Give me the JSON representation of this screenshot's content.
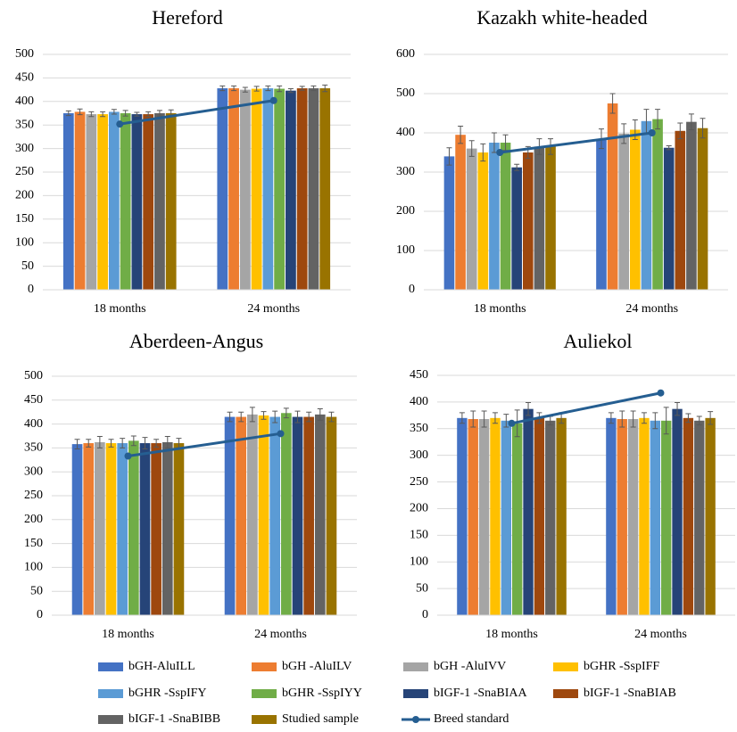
{
  "chart_data": [
    {
      "type": "bar",
      "title": "Hereford",
      "categories": [
        "18 months",
        "24 months"
      ],
      "ylim": [
        0,
        500
      ],
      "yticks": [
        0,
        50,
        100,
        150,
        200,
        250,
        300,
        350,
        400,
        450,
        500
      ],
      "grid": true,
      "series": [
        {
          "name": "bGH-AluILL",
          "color": "#4472c4",
          "values": [
            375,
            428
          ],
          "error": [
            5,
            5
          ]
        },
        {
          "name": "bGH -AluILV",
          "color": "#ed7d31",
          "values": [
            378,
            428
          ],
          "error": [
            6,
            5
          ]
        },
        {
          "name": "bGH -AluIVV",
          "color": "#a5a5a5",
          "values": [
            373,
            425
          ],
          "error": [
            5,
            5
          ]
        },
        {
          "name": "bGHR -SspIFF",
          "color": "#ffc000",
          "values": [
            373,
            427
          ],
          "error": [
            5,
            5
          ]
        },
        {
          "name": "bGHR -SspIFY",
          "color": "#5b9bd5",
          "values": [
            378,
            428
          ],
          "error": [
            5,
            5
          ]
        },
        {
          "name": "bGHR -SspIYY",
          "color": "#70ad47",
          "values": [
            375,
            427
          ],
          "error": [
            6,
            6
          ]
        },
        {
          "name": "bIGF-1 -SnaBIAA",
          "color": "#264478",
          "values": [
            373,
            423
          ],
          "error": [
            4,
            4
          ]
        },
        {
          "name": "bIGF-1 -SnaBIAB",
          "color": "#9e480e",
          "values": [
            373,
            428
          ],
          "error": [
            5,
            4
          ]
        },
        {
          "name": "bIGF-1 -SnaBIBB",
          "color": "#636363",
          "values": [
            375,
            428
          ],
          "error": [
            6,
            5
          ]
        },
        {
          "name": "Studied sample",
          "color": "#997300",
          "values": [
            375,
            428
          ],
          "error": [
            7,
            7
          ]
        },
        {
          "name": "Breed standard",
          "type": "line",
          "color": "#255e91",
          "values": [
            352,
            402
          ]
        }
      ]
    },
    {
      "type": "bar",
      "title": "Kazakh white-headed",
      "categories": [
        "18 months",
        "24 months"
      ],
      "ylim": [
        0,
        600
      ],
      "yticks": [
        0,
        100,
        200,
        300,
        400,
        500,
        600
      ],
      "grid": true,
      "series": [
        {
          "name": "bGH-AluILL",
          "color": "#4472c4",
          "values": [
            340,
            385
          ],
          "error": [
            22,
            25
          ]
        },
        {
          "name": "bGH -AluILV",
          "color": "#ed7d31",
          "values": [
            395,
            475
          ],
          "error": [
            22,
            25
          ]
        },
        {
          "name": "bGH -AluIVV",
          "color": "#a5a5a5",
          "values": [
            360,
            398
          ],
          "error": [
            20,
            25
          ]
        },
        {
          "name": "bGHR -SspIFF",
          "color": "#ffc000",
          "values": [
            350,
            408
          ],
          "error": [
            22,
            25
          ]
        },
        {
          "name": "bGHR -SspIFY",
          "color": "#5b9bd5",
          "values": [
            375,
            430
          ],
          "error": [
            25,
            30
          ]
        },
        {
          "name": "bGHR -SspIYY",
          "color": "#70ad47",
          "values": [
            375,
            435
          ],
          "error": [
            20,
            25
          ]
        },
        {
          "name": "bIGF-1 -SnaBIAA",
          "color": "#264478",
          "values": [
            312,
            362
          ],
          "error": [
            8,
            5
          ]
        },
        {
          "name": "bIGF-1 -SnaBIAB",
          "color": "#9e480e",
          "values": [
            350,
            405
          ],
          "error": [
            15,
            20
          ]
        },
        {
          "name": "bIGF-1 -SnaBIBB",
          "color": "#636363",
          "values": [
            365,
            428
          ],
          "error": [
            20,
            20
          ]
        },
        {
          "name": "Studied sample",
          "color": "#997300",
          "values": [
            365,
            412
          ],
          "error": [
            20,
            25
          ]
        },
        {
          "name": "Breed standard",
          "type": "line",
          "color": "#255e91",
          "values": [
            350,
            400
          ]
        }
      ]
    },
    {
      "type": "bar",
      "title": "Aberdeen-Angus",
      "categories": [
        "18 months",
        "24 months"
      ],
      "ylim": [
        0,
        500
      ],
      "yticks": [
        0,
        50,
        100,
        150,
        200,
        250,
        300,
        350,
        400,
        450,
        500
      ],
      "grid": true,
      "series": [
        {
          "name": "bGH-AluILL",
          "color": "#4472c4",
          "values": [
            358,
            415
          ],
          "error": [
            10,
            10
          ]
        },
        {
          "name": "bGH -AluILV",
          "color": "#ed7d31",
          "values": [
            360,
            415
          ],
          "error": [
            8,
            10
          ]
        },
        {
          "name": "bGH -AluIVV",
          "color": "#a5a5a5",
          "values": [
            362,
            420
          ],
          "error": [
            12,
            15
          ]
        },
        {
          "name": "bGHR -SspIFF",
          "color": "#ffc000",
          "values": [
            360,
            418
          ],
          "error": [
            8,
            8
          ]
        },
        {
          "name": "bGHR -SspIFY",
          "color": "#5b9bd5",
          "values": [
            360,
            415
          ],
          "error": [
            10,
            12
          ]
        },
        {
          "name": "bGHR -SspIYY",
          "color": "#70ad47",
          "values": [
            365,
            423
          ],
          "error": [
            10,
            10
          ]
        },
        {
          "name": "bIGF-1 -SnaBIAA",
          "color": "#264478",
          "values": [
            360,
            415
          ],
          "error": [
            12,
            12
          ]
        },
        {
          "name": "bIGF-1 -SnaBIAB",
          "color": "#9e480e",
          "values": [
            360,
            415
          ],
          "error": [
            8,
            10
          ]
        },
        {
          "name": "bIGF-1 -SnaBIBB",
          "color": "#636363",
          "values": [
            362,
            420
          ],
          "error": [
            12,
            12
          ]
        },
        {
          "name": "Studied sample",
          "color": "#997300",
          "values": [
            360,
            415
          ],
          "error": [
            10,
            10
          ]
        },
        {
          "name": "Breed standard",
          "type": "line",
          "color": "#255e91",
          "values": [
            333,
            380
          ]
        }
      ]
    },
    {
      "type": "bar",
      "title": "Auliekol",
      "categories": [
        "18 months",
        "24 months"
      ],
      "ylim": [
        0,
        450
      ],
      "yticks": [
        0,
        50,
        100,
        150,
        200,
        250,
        300,
        350,
        400,
        450
      ],
      "grid": true,
      "series": [
        {
          "name": "bGH-AluILL",
          "color": "#4472c4",
          "values": [
            370,
            370
          ],
          "error": [
            10,
            10
          ]
        },
        {
          "name": "bGH -AluILV",
          "color": "#ed7d31",
          "values": [
            368,
            368
          ],
          "error": [
            15,
            15
          ]
        },
        {
          "name": "bGH -AluIVV",
          "color": "#a5a5a5",
          "values": [
            368,
            368
          ],
          "error": [
            15,
            15
          ]
        },
        {
          "name": "bGHR -SspIFF",
          "color": "#ffc000",
          "values": [
            370,
            370
          ],
          "error": [
            10,
            10
          ]
        },
        {
          "name": "bGHR -SspIFY",
          "color": "#5b9bd5",
          "values": [
            365,
            365
          ],
          "error": [
            12,
            15
          ]
        },
        {
          "name": "bGHR -SspIYY",
          "color": "#70ad47",
          "values": [
            360,
            365
          ],
          "error": [
            25,
            25
          ]
        },
        {
          "name": "bIGF-1 -SnaBIAA",
          "color": "#264478",
          "values": [
            387,
            387
          ],
          "error": [
            12,
            12
          ]
        },
        {
          "name": "bIGF-1 -SnaBIAB",
          "color": "#9e480e",
          "values": [
            370,
            370
          ],
          "error": [
            10,
            8
          ]
        },
        {
          "name": "bIGF-1 -SnaBIBB",
          "color": "#636363",
          "values": [
            365,
            365
          ],
          "error": [
            8,
            8
          ]
        },
        {
          "name": "Studied sample",
          "color": "#997300",
          "values": [
            370,
            370
          ],
          "error": [
            10,
            12
          ]
        },
        {
          "name": "Breed standard",
          "type": "line",
          "color": "#255e91",
          "values": [
            360,
            417
          ]
        }
      ]
    }
  ]
}
